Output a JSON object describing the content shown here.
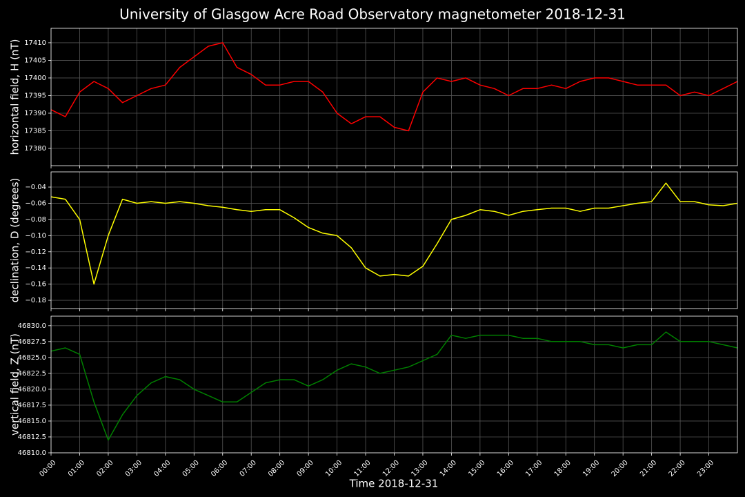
{
  "title": "University of Glasgow Acre Road Observatory magnetometer 2018-12-31",
  "xlabel": "Time 2018-12-31",
  "xlim": [
    0,
    24
  ],
  "xticks": [
    {
      "value": 0,
      "label": "00:00"
    },
    {
      "value": 1,
      "label": "01:00"
    },
    {
      "value": 2,
      "label": "02:00"
    },
    {
      "value": 3,
      "label": "03:00"
    },
    {
      "value": 4,
      "label": "04:00"
    },
    {
      "value": 5,
      "label": "05:00"
    },
    {
      "value": 6,
      "label": "06:00"
    },
    {
      "value": 7,
      "label": "07:00"
    },
    {
      "value": 8,
      "label": "08:00"
    },
    {
      "value": 9,
      "label": "09:00"
    },
    {
      "value": 10,
      "label": "10:00"
    },
    {
      "value": 11,
      "label": "11:00"
    },
    {
      "value": 12,
      "label": "12:00"
    },
    {
      "value": 13,
      "label": "13:00"
    },
    {
      "value": 14,
      "label": "14:00"
    },
    {
      "value": 15,
      "label": "15:00"
    },
    {
      "value": 16,
      "label": "16:00"
    },
    {
      "value": 17,
      "label": "17:00"
    },
    {
      "value": 18,
      "label": "18:00"
    },
    {
      "value": 19,
      "label": "19:00"
    },
    {
      "value": 20,
      "label": "20:00"
    },
    {
      "value": 21,
      "label": "21:00"
    },
    {
      "value": 22,
      "label": "22:00"
    },
    {
      "value": 23,
      "label": "23:00"
    }
  ],
  "x": [
    0,
    0.5,
    1,
    1.5,
    2,
    2.5,
    3,
    3.5,
    4,
    4.5,
    5,
    5.5,
    6,
    6.5,
    7,
    7.5,
    8,
    8.5,
    9,
    9.5,
    10,
    10.5,
    11,
    11.5,
    12,
    12.5,
    13,
    13.5,
    14,
    14.5,
    15,
    15.5,
    16,
    16.5,
    17,
    17.5,
    18,
    18.5,
    19,
    19.5,
    20,
    20.5,
    21,
    21.5,
    22,
    22.5,
    23,
    23.5,
    24
  ],
  "chart_data": [
    {
      "type": "line",
      "ylabel": "horizontal field, H (nT)",
      "color": "#ff0000",
      "grid": true,
      "ylim": [
        17375.1,
        17414.1
      ],
      "yticks": [
        17380,
        17385,
        17390,
        17395,
        17400,
        17405,
        17410
      ],
      "values": [
        17391,
        17389,
        17396,
        17399,
        17397,
        17393,
        17395,
        17397,
        17398,
        17403,
        17406,
        17409,
        17410,
        17403,
        17401,
        17398,
        17398,
        17399,
        17399,
        17396,
        17390,
        17387,
        17389,
        17389,
        17386,
        17385,
        17396,
        17400,
        17399,
        17400,
        17398,
        17397,
        17395,
        17397,
        17397,
        17398,
        17397,
        17399,
        17400,
        17400,
        17399,
        17398,
        17398,
        17398,
        17395,
        17396,
        17395,
        17397,
        17399
      ]
    },
    {
      "type": "line",
      "ylabel": "declination, D (degrees)",
      "color": "#ffff00",
      "grid": true,
      "ylim": [
        -0.1902,
        -0.0212
      ],
      "yticks": [
        {
          "value": -0.18,
          "label": "−0.18"
        },
        {
          "value": -0.16,
          "label": "−0.16"
        },
        {
          "value": -0.14,
          "label": "−0.14"
        },
        {
          "value": -0.12,
          "label": "−0.12"
        },
        {
          "value": -0.1,
          "label": "−0.10"
        },
        {
          "value": -0.08,
          "label": "−0.08"
        },
        {
          "value": -0.06,
          "label": "−0.06"
        },
        {
          "value": -0.04,
          "label": "−0.04"
        }
      ],
      "values": [
        -0.052,
        -0.055,
        -0.08,
        -0.16,
        -0.1,
        -0.055,
        -0.06,
        -0.058,
        -0.06,
        -0.058,
        -0.06,
        -0.063,
        -0.065,
        -0.068,
        -0.07,
        -0.068,
        -0.068,
        -0.078,
        -0.09,
        -0.097,
        -0.1,
        -0.115,
        -0.14,
        -0.15,
        -0.148,
        -0.15,
        -0.138,
        -0.11,
        -0.08,
        -0.075,
        -0.068,
        -0.07,
        -0.075,
        -0.07,
        -0.068,
        -0.066,
        -0.066,
        -0.07,
        -0.066,
        -0.066,
        -0.063,
        -0.06,
        -0.058,
        -0.035,
        -0.058,
        -0.058,
        -0.062,
        -0.063,
        -0.06
      ]
    },
    {
      "type": "line",
      "ylabel": "vertical field, Z (nT)",
      "color": "#008000",
      "grid": true,
      "ylim": [
        46810,
        46831.5
      ],
      "yticks": [
        {
          "value": 46810,
          "label": "46810.0"
        },
        {
          "value": 46812.5,
          "label": "46812.5"
        },
        {
          "value": 46815,
          "label": "46815.0"
        },
        {
          "value": 46817.5,
          "label": "46817.5"
        },
        {
          "value": 46820,
          "label": "46820.0"
        },
        {
          "value": 46822.5,
          "label": "46822.5"
        },
        {
          "value": 46825,
          "label": "46825.0"
        },
        {
          "value": 46827.5,
          "label": "46827.5"
        },
        {
          "value": 46830,
          "label": "46830.0"
        }
      ],
      "values": [
        46826,
        46826.5,
        46825.5,
        46818,
        46812,
        46816,
        46819,
        46821,
        46822,
        46821.5,
        46820,
        46819,
        46818,
        46818,
        46819.5,
        46821,
        46821.5,
        46821.5,
        46820.5,
        46821.5,
        46823,
        46824,
        46823.5,
        46822.5,
        46823,
        46823.5,
        46824.5,
        46825.5,
        46828.5,
        46828,
        46828.5,
        46828.5,
        46828.5,
        46828,
        46828,
        46827.5,
        46827.5,
        46827.5,
        46827,
        46827,
        46826.5,
        46827,
        46827,
        46829,
        46827.5,
        46827.5,
        46827.5,
        46827,
        46826.5
      ]
    }
  ]
}
